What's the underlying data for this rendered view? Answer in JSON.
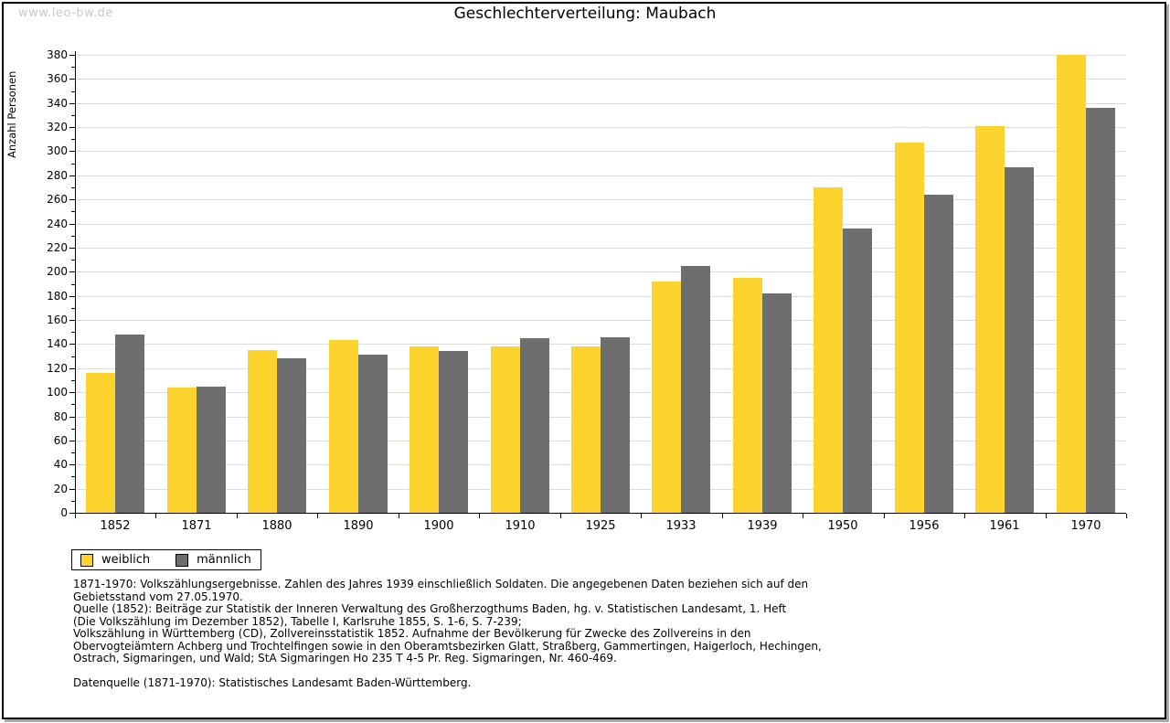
{
  "page": {
    "watermark": "www.leo-bw.de",
    "title": "Geschlechterverteilung: Maubach"
  },
  "chart_data": {
    "type": "bar",
    "title": "Geschlechterverteilung: Maubach",
    "xlabel": "",
    "ylabel": "Anzahl Personen",
    "categories": [
      "1852",
      "1871",
      "1880",
      "1890",
      "1900",
      "1910",
      "1925",
      "1933",
      "1939",
      "1950",
      "1956",
      "1961",
      "1970"
    ],
    "series": [
      {
        "name": "weiblich",
        "color": "#FCD42D",
        "values": [
          116,
          104,
          135,
          143,
          138,
          138,
          138,
          192,
          195,
          270,
          307,
          321,
          380
        ]
      },
      {
        "name": "männlich",
        "color": "#6E6E6E",
        "values": [
          148,
          105,
          128,
          131,
          134,
          145,
          146,
          205,
          182,
          236,
          264,
          287,
          336
        ]
      }
    ],
    "ylim": [
      0,
      380
    ],
    "ytick_major": 20,
    "ytick_minor": 10,
    "grid": true,
    "gridline_color": "#dcdcdc",
    "legend_position": "bottom-left"
  },
  "footnotes": {
    "lines": [
      "1871-1970: Volkszählungsergebnisse. Zahlen des Jahres 1939 einschließlich Soldaten. Die angegebenen Daten beziehen sich auf den",
      "Gebietsstand vom 27.05.1970.",
      "Quelle (1852): Beiträge zur Statistik der Inneren Verwaltung des Großherzogthums Baden, hg. v. Statistischen Landesamt, 1. Heft",
      "(Die Volkszählung im Dezember 1852), Tabelle I, Karlsruhe 1855, S. 1-6, S. 7-239;",
      "Volkszählung in Württemberg (CD), Zollvereinsstatistik 1852. Aufnahme der Bevölkerung für Zwecke des Zollvereins in den",
      "Obervogteiämtern Achberg und Trochtelfingen sowie in den Oberamtsbezirken Glatt, Straßberg, Gammertingen, Haigerloch, Hechingen,",
      "Ostrach, Sigmaringen, und Wald; StA Sigmaringen Ho 235 T 4-5 Pr. Reg. Sigmaringen, Nr. 460-469."
    ],
    "datasource": "Datenquelle (1871-1970): Statistisches Landesamt Baden-Württemberg."
  },
  "colors": {
    "weiblich": "#FCD42D",
    "männlich": "#6E6E6E",
    "gridline": "#dcdcdc",
    "watermark": "#c9c9c9",
    "frame_border": "#000000",
    "frame_shadow": "#aaaaaa"
  }
}
